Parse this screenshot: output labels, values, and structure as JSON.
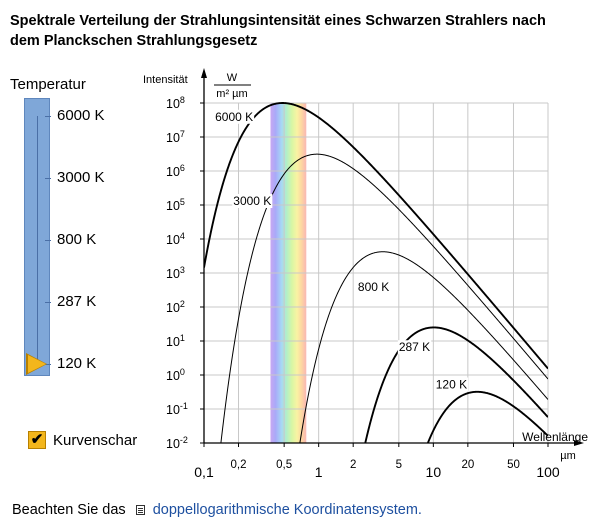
{
  "title": "Spektrale Verteilung der Strahlungsintensität eines Schwarzen Strahlers nach dem Planckschen Strahlungsgesetz",
  "slider": {
    "label": "Temperatur",
    "options": [
      "6000 K",
      "3000 K",
      "800 K",
      "287 K",
      "120 K"
    ],
    "selected": "120 K"
  },
  "checkbox": {
    "label": "Kurvenschar",
    "checked": true,
    "mark": "✔"
  },
  "footer": {
    "prefix": "Beachten Sie das",
    "link": "doppellogarithmische Koordinatensystem."
  },
  "colors": {
    "slider": "#7fa7d8",
    "accent": "#f3b61c",
    "link": "#1e50a0"
  },
  "chart_data": {
    "type": "line",
    "xscale": "log",
    "yscale": "log",
    "xlim": [
      0.1,
      100
    ],
    "ylim": [
      0.01,
      100000000
    ],
    "ylabel": "Intensität",
    "yunit_num": "W",
    "yunit_den": "m² µm",
    "xlabel": "Wellenlänge",
    "xunit": "µm",
    "xticks": [
      {
        "value": 0.1,
        "label": "0,1",
        "major": true
      },
      {
        "value": 0.2,
        "label": "0,2",
        "major": false
      },
      {
        "value": 0.5,
        "label": "0,5",
        "major": false
      },
      {
        "value": 1,
        "label": "1",
        "major": true
      },
      {
        "value": 2,
        "label": "2",
        "major": false
      },
      {
        "value": 5,
        "label": "5",
        "major": false
      },
      {
        "value": 10,
        "label": "10",
        "major": true
      },
      {
        "value": 20,
        "label": "20",
        "major": false
      },
      {
        "value": 50,
        "label": "50",
        "major": false
      },
      {
        "value": 100,
        "label": "100",
        "major": true
      }
    ],
    "yticks": [
      {
        "value": 100000000,
        "base": "10",
        "exp": "8"
      },
      {
        "value": 10000000,
        "base": "10",
        "exp": "7"
      },
      {
        "value": 1000000,
        "base": "10",
        "exp": "6"
      },
      {
        "value": 100000,
        "base": "10",
        "exp": "5"
      },
      {
        "value": 10000,
        "base": "10",
        "exp": "4"
      },
      {
        "value": 1000,
        "base": "10",
        "exp": "3"
      },
      {
        "value": 100,
        "base": "10",
        "exp": "2"
      },
      {
        "value": 10,
        "base": "10",
        "exp": "1"
      },
      {
        "value": 1,
        "base": "10",
        "exp": "0"
      },
      {
        "value": 0.1,
        "base": "10",
        "exp": "-1"
      },
      {
        "value": 0.01,
        "base": "10",
        "exp": "-2"
      }
    ],
    "visible_band": [
      0.38,
      0.78
    ],
    "series": [
      {
        "name": "6000 K",
        "temperature": 6000,
        "bold": true
      },
      {
        "name": "3000 K",
        "temperature": 3000,
        "bold": false
      },
      {
        "name": "800 K",
        "temperature": 800,
        "bold": false
      },
      {
        "name": "287 K",
        "temperature": 287,
        "bold": true
      },
      {
        "name": "120 K",
        "temperature": 120,
        "bold": true
      }
    ],
    "curve_labels": [
      {
        "text": "6000 K",
        "x": 0.125,
        "y": 30000000
      },
      {
        "text": "3000 K",
        "x": 0.18,
        "y": 100000
      },
      {
        "text": "800 K",
        "x": 2.2,
        "y": 300
      },
      {
        "text": "287 K",
        "x": 5.0,
        "y": 5
      },
      {
        "text": "120 K",
        "x": 10.5,
        "y": 0.4
      }
    ]
  }
}
